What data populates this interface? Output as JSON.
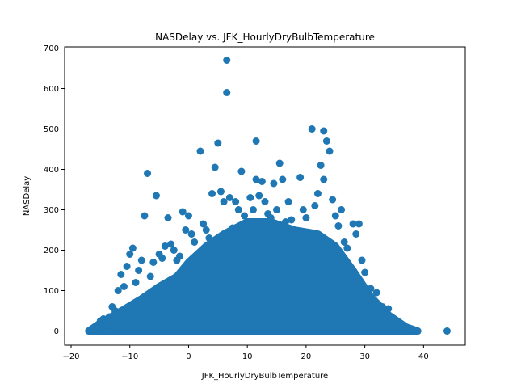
{
  "chart_data": {
    "type": "scatter",
    "title": "NASDelay vs. JFK_HourlyDryBulbTemperature",
    "xlabel": "JFK_HourlyDryBulbTemperature",
    "ylabel": "NASDelay",
    "xlim": [
      -21.1,
      47.1
    ],
    "ylim": [
      -35,
      703
    ],
    "xticks": [
      -20,
      -10,
      0,
      10,
      20,
      30,
      40
    ],
    "yticks": [
      0,
      100,
      200,
      300,
      400,
      500,
      600,
      700
    ],
    "grid": false,
    "marker_color": "#1f77b4",
    "series": [
      {
        "points": [
          [
            -17,
            0
          ],
          [
            -16.5,
            2
          ],
          [
            -16,
            5
          ],
          [
            -15.5,
            10
          ],
          [
            -15,
            25
          ],
          [
            -14.5,
            30
          ],
          [
            -14,
            15
          ],
          [
            -13.5,
            35
          ],
          [
            -13,
            60
          ],
          [
            -12.5,
            50
          ],
          [
            -12,
            100
          ],
          [
            -11.5,
            140
          ],
          [
            -11,
            110
          ],
          [
            -10.5,
            160
          ],
          [
            -10,
            190
          ],
          [
            -9.5,
            205
          ],
          [
            -9,
            120
          ],
          [
            -8.5,
            150
          ],
          [
            -8,
            175
          ],
          [
            -7.5,
            285
          ],
          [
            -7,
            390
          ],
          [
            -6.5,
            135
          ],
          [
            -6,
            170
          ],
          [
            -5.5,
            335
          ],
          [
            -5,
            190
          ],
          [
            -4.5,
            180
          ],
          [
            -4,
            210
          ],
          [
            -3.5,
            280
          ],
          [
            -3,
            215
          ],
          [
            -2.5,
            200
          ],
          [
            -2,
            175
          ],
          [
            -1.5,
            185
          ],
          [
            -1,
            295
          ],
          [
            -0.5,
            250
          ],
          [
            0,
            285
          ],
          [
            0.5,
            240
          ],
          [
            1,
            220
          ],
          [
            2,
            445
          ],
          [
            2.5,
            265
          ],
          [
            3,
            250
          ],
          [
            3.5,
            230
          ],
          [
            4,
            340
          ],
          [
            4.5,
            405
          ],
          [
            5,
            465
          ],
          [
            5.5,
            345
          ],
          [
            6,
            320
          ],
          [
            6.5,
            670
          ],
          [
            6.5,
            590
          ],
          [
            7,
            330
          ],
          [
            7.5,
            255
          ],
          [
            8,
            320
          ],
          [
            8.5,
            300
          ],
          [
            9,
            395
          ],
          [
            9.5,
            285
          ],
          [
            10,
            270
          ],
          [
            10.5,
            330
          ],
          [
            11,
            300
          ],
          [
            11.5,
            470
          ],
          [
            11.5,
            375
          ],
          [
            12,
            335
          ],
          [
            12.5,
            370
          ],
          [
            13,
            320
          ],
          [
            13.5,
            290
          ],
          [
            14,
            280
          ],
          [
            14.5,
            365
          ],
          [
            15,
            300
          ],
          [
            15.5,
            415
          ],
          [
            16,
            375
          ],
          [
            16.5,
            270
          ],
          [
            17,
            320
          ],
          [
            17.5,
            275
          ],
          [
            18,
            240
          ],
          [
            19,
            380
          ],
          [
            19.5,
            300
          ],
          [
            20,
            280
          ],
          [
            21,
            500
          ],
          [
            21.5,
            310
          ],
          [
            22,
            340
          ],
          [
            22.5,
            410
          ],
          [
            23,
            495
          ],
          [
            23,
            375
          ],
          [
            23.5,
            470
          ],
          [
            24,
            445
          ],
          [
            24.5,
            325
          ],
          [
            25,
            285
          ],
          [
            25.5,
            260
          ],
          [
            26,
            300
          ],
          [
            26.5,
            220
          ],
          [
            27,
            205
          ],
          [
            28,
            265
          ],
          [
            28.5,
            240
          ],
          [
            29,
            265
          ],
          [
            29.5,
            175
          ],
          [
            30,
            145
          ],
          [
            31,
            105
          ],
          [
            32,
            95
          ],
          [
            33,
            60
          ],
          [
            34,
            55
          ],
          [
            35,
            30
          ],
          [
            36,
            20
          ],
          [
            37,
            10
          ],
          [
            38,
            5
          ],
          [
            39,
            0
          ],
          [
            44,
            0
          ]
        ]
      }
    ]
  }
}
